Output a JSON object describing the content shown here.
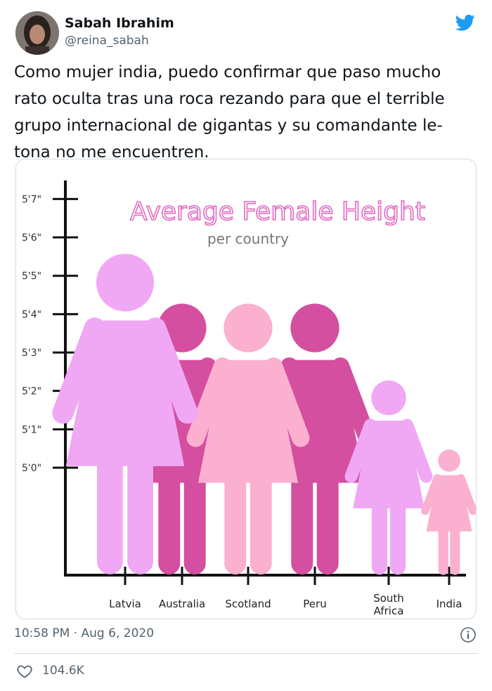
{
  "tweet": {
    "author_name": "Sabah Ibrahim",
    "author_handle": "@reina_sabah",
    "text": "Como mujer india, puedo confirmar que paso mucho\nrato oculta tras una roca rezando para que el terrible\ngrupo internacional de gigantas y su comandante le-\ntona no me encuentren.",
    "timestamp": "10:58 PM · Aug 6, 2020",
    "likes": "104.6K",
    "brand_color": "#1d9bf0"
  },
  "chart_data": {
    "type": "bar",
    "title": "Average Female Height",
    "subtitle": "per country",
    "y_tick_labels": [
      "5'0\"",
      "5'1\"",
      "5'2\"",
      "5'3\"",
      "5'4\"",
      "5'5\"",
      "5'6\"",
      "5'7\""
    ],
    "y_ticks_in": [
      60,
      61,
      62,
      63,
      64,
      65,
      66,
      67
    ],
    "categories": [
      "Latvia",
      "Australia",
      "Scotland",
      "Peru",
      "South Africa",
      "India"
    ],
    "category_lines": [
      [
        "Latvia"
      ],
      [
        "Australia"
      ],
      [
        "Scotland"
      ],
      [
        "Peru"
      ],
      [
        "South",
        "Africa"
      ],
      [
        "India"
      ]
    ],
    "values_in": [
      65.5,
      64.2,
      64.2,
      64.2,
      62.2,
      60.4
    ],
    "colors": [
      "#f0a8f4",
      "#d44fa0",
      "#fbb0d0",
      "#d44fa0",
      "#f0a8f4",
      "#fbb0d0"
    ],
    "ylim_in": [
      57.2,
      67.3
    ],
    "grid": false
  }
}
